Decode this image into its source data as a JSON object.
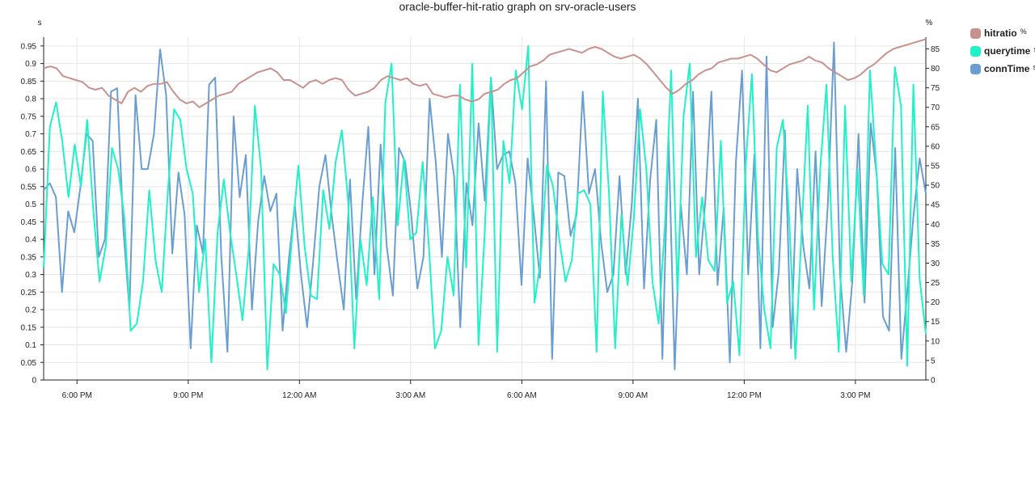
{
  "chart_data": {
    "type": "line",
    "title": "oracle-buffer-hit-ratio graph on srv-oracle-users",
    "left_axis_unit": "s",
    "right_axis_unit": "%",
    "ylim_left": [
      0,
      0.975
    ],
    "ylim_right": [
      0,
      88
    ],
    "left_ticks": [
      "0",
      "0.05",
      "0.1",
      "0.15",
      "0.2",
      "0.25",
      "0.3",
      "0.35",
      "0.4",
      "0.45",
      "0.5",
      "0.55",
      "0.6",
      "0.65",
      "0.7",
      "0.75",
      "0.8",
      "0.85",
      "0.9",
      "0.95"
    ],
    "right_ticks": [
      "0",
      "5",
      "10",
      "15",
      "20",
      "25",
      "30",
      "35",
      "40",
      "45",
      "50",
      "55",
      "60",
      "65",
      "70",
      "75",
      "80",
      "85"
    ],
    "x_tick_labels": [
      "6:00 PM",
      "9:00 PM",
      "12:00 AM",
      "3:00 AM",
      "6:00 AM",
      "9:00 AM",
      "12:00 PM",
      "3:00 PM"
    ],
    "x_range_hours": [
      17.1,
      40.9
    ],
    "x_tick_hours": [
      18,
      21,
      24,
      27,
      30,
      33,
      36,
      39
    ],
    "grid": true,
    "legend_position": "right",
    "series": [
      {
        "name": "hitratio",
        "unit": "%",
        "color": "#c9918e",
        "axis": "right",
        "x_start_hour": 17.1,
        "x_end_hour": 40.9,
        "values": [
          80,
          80.5,
          80,
          78,
          77.5,
          77,
          76.5,
          75,
          74.5,
          75,
          73,
          72,
          71,
          74,
          75,
          74,
          75.5,
          76,
          76,
          76.5,
          74,
          72,
          71,
          71.5,
          70,
          71,
          72,
          73,
          73.5,
          74,
          76,
          77,
          78,
          79,
          79.5,
          80,
          79,
          77,
          77,
          76,
          75,
          76.5,
          77,
          76,
          77,
          77.5,
          77,
          74.5,
          73,
          73.5,
          74,
          75,
          77,
          78,
          77.5,
          77,
          77.5,
          76,
          75.5,
          76,
          73.5,
          73,
          72.5,
          73,
          73,
          72,
          71.5,
          72,
          73.5,
          74,
          74.5,
          76,
          77,
          77.5,
          79,
          80.5,
          81,
          82,
          83.5,
          84,
          84.5,
          85,
          84.5,
          84,
          85,
          85.5,
          85,
          84,
          83,
          82.5,
          83,
          83.5,
          82.5,
          81,
          79,
          77,
          75,
          73.5,
          74.5,
          76,
          77,
          78.5,
          79.5,
          80,
          81.5,
          82,
          82.5,
          82.5,
          83,
          83.5,
          82.5,
          81,
          79.5,
          79,
          80,
          81,
          81.5,
          82,
          83,
          82,
          81.5,
          80,
          79,
          78,
          77,
          77.5,
          78.5,
          80,
          81,
          82.5,
          84,
          85,
          85.5,
          86,
          86.5,
          87,
          87.5
        ]
      },
      {
        "name": "querytime",
        "unit": "s",
        "color": "#1ef2c6",
        "axis": "left",
        "x_start_hour": 17.1,
        "x_end_hour": 40.9,
        "values": [
          0.32,
          0.72,
          0.79,
          0.68,
          0.52,
          0.67,
          0.55,
          0.74,
          0.48,
          0.28,
          0.38,
          0.66,
          0.6,
          0.46,
          0.14,
          0.16,
          0.28,
          0.54,
          0.34,
          0.25,
          0.54,
          0.77,
          0.74,
          0.6,
          0.53,
          0.25,
          0.4,
          0.05,
          0.42,
          0.57,
          0.42,
          0.3,
          0.17,
          0.37,
          0.78,
          0.6,
          0.03,
          0.33,
          0.3,
          0.19,
          0.41,
          0.61,
          0.38,
          0.24,
          0.23,
          0.54,
          0.43,
          0.62,
          0.71,
          0.51,
          0.09,
          0.4,
          0.27,
          0.52,
          0.23,
          0.79,
          0.9,
          0.44,
          0.63,
          0.4,
          0.42,
          0.62,
          0.38,
          0.09,
          0.14,
          0.35,
          0.24,
          0.84,
          0.32,
          0.9,
          0.1,
          0.42,
          0.86,
          0.08,
          0.68,
          0.56,
          0.88,
          0.77,
          0.95,
          0.22,
          0.34,
          0.61,
          0.55,
          0.4,
          0.28,
          0.34,
          0.53,
          0.54,
          0.5,
          0.08,
          0.82,
          0.53,
          0.09,
          0.47,
          0.27,
          0.46,
          0.77,
          0.6,
          0.28,
          0.16,
          0.44,
          0.88,
          0.25,
          0.75,
          0.9,
          0.35,
          0.52,
          0.34,
          0.31,
          0.68,
          0.22,
          0.28,
          0.07,
          0.61,
          0.87,
          0.4,
          0.2,
          0.09,
          0.66,
          0.74,
          0.46,
          0.06,
          0.42,
          0.78,
          0.2,
          0.6,
          0.84,
          0.35,
          0.08,
          0.78,
          0.28,
          0.6,
          0.24,
          0.88,
          0.61,
          0.33,
          0.3,
          0.89,
          0.78,
          0.04,
          0.84,
          0.29,
          0.13
        ]
      },
      {
        "name": "connTime",
        "unit": "s",
        "color": "#6a9ed2",
        "axis": "left",
        "x_start_hour": 17.1,
        "x_end_hour": 40.9,
        "values": [
          0.54,
          0.56,
          0.52,
          0.25,
          0.48,
          0.42,
          0.55,
          0.7,
          0.68,
          0.35,
          0.4,
          0.82,
          0.83,
          0.43,
          0.2,
          0.81,
          0.6,
          0.6,
          0.7,
          0.94,
          0.81,
          0.36,
          0.59,
          0.47,
          0.09,
          0.44,
          0.36,
          0.84,
          0.86,
          0.35,
          0.08,
          0.75,
          0.52,
          0.64,
          0.2,
          0.45,
          0.58,
          0.48,
          0.53,
          0.14,
          0.34,
          0.5,
          0.3,
          0.15,
          0.34,
          0.55,
          0.64,
          0.47,
          0.33,
          0.2,
          0.57,
          0.23,
          0.5,
          0.72,
          0.3,
          0.67,
          0.38,
          0.24,
          0.66,
          0.62,
          0.47,
          0.26,
          0.35,
          0.8,
          0.62,
          0.35,
          0.7,
          0.58,
          0.15,
          0.56,
          0.44,
          0.73,
          0.51,
          0.86,
          0.6,
          0.64,
          0.65,
          0.56,
          0.27,
          0.63,
          0.47,
          0.29,
          0.85,
          0.06,
          0.59,
          0.58,
          0.41,
          0.47,
          0.82,
          0.53,
          0.6,
          0.39,
          0.25,
          0.3,
          0.58,
          0.3,
          0.5,
          0.8,
          0.26,
          0.57,
          0.74,
          0.06,
          0.69,
          0.03,
          0.5,
          0.3,
          0.82,
          0.3,
          0.51,
          0.82,
          0.27,
          0.49,
          0.05,
          0.62,
          0.88,
          0.3,
          0.64,
          0.09,
          0.92,
          0.15,
          0.31,
          0.71,
          0.09,
          0.6,
          0.38,
          0.26,
          0.65,
          0.21,
          0.5,
          0.96,
          0.3,
          0.08,
          0.28,
          0.7,
          0.22,
          0.73,
          0.58,
          0.18,
          0.14,
          0.66,
          0.06,
          0.26,
          0.47,
          0.63,
          0.53
        ]
      }
    ]
  },
  "legend": [
    {
      "label": "hitratio",
      "unit": "%",
      "color": "#c9918e"
    },
    {
      "label": "querytime",
      "unit": "s",
      "color": "#1ef2c6"
    },
    {
      "label": "connTime",
      "unit": "s",
      "color": "#6a9ed2"
    }
  ]
}
